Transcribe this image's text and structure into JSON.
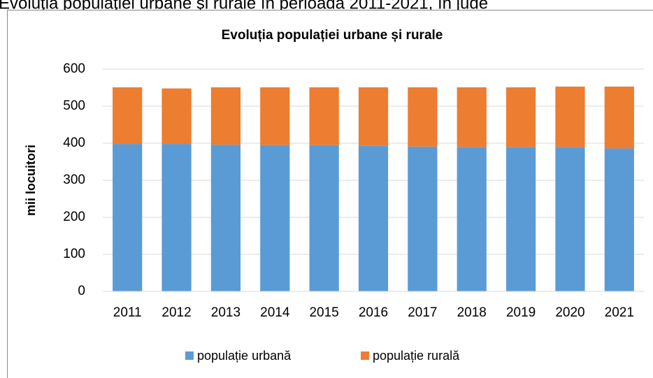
{
  "caption": "Evoluţia populaţiei urbane şi rurale în perioada 2011-2021, în jude",
  "chart_data": {
    "type": "stacked_bar",
    "title": "Evoluția populației urbane și rurale",
    "y_label": "mii locuitori",
    "categories": [
      "2011",
      "2012",
      "2013",
      "2014",
      "2015",
      "2016",
      "2017",
      "2018",
      "2019",
      "2020",
      "2021"
    ],
    "series": [
      {
        "name": "populație urbană",
        "color": "#5b9bd5",
        "values": [
          398,
          398,
          396,
          395,
          395,
          393,
          391,
          390,
          390,
          390,
          386
        ]
      },
      {
        "name": "populație rurală",
        "color": "#ed7d31",
        "values": [
          153,
          150,
          155,
          156,
          156,
          158,
          160,
          161,
          161,
          163,
          167
        ]
      }
    ],
    "ylim": [
      0,
      600
    ],
    "yticks": [
      0,
      100,
      200,
      300,
      400,
      500,
      600
    ],
    "grid": true,
    "legend": "bottom"
  }
}
